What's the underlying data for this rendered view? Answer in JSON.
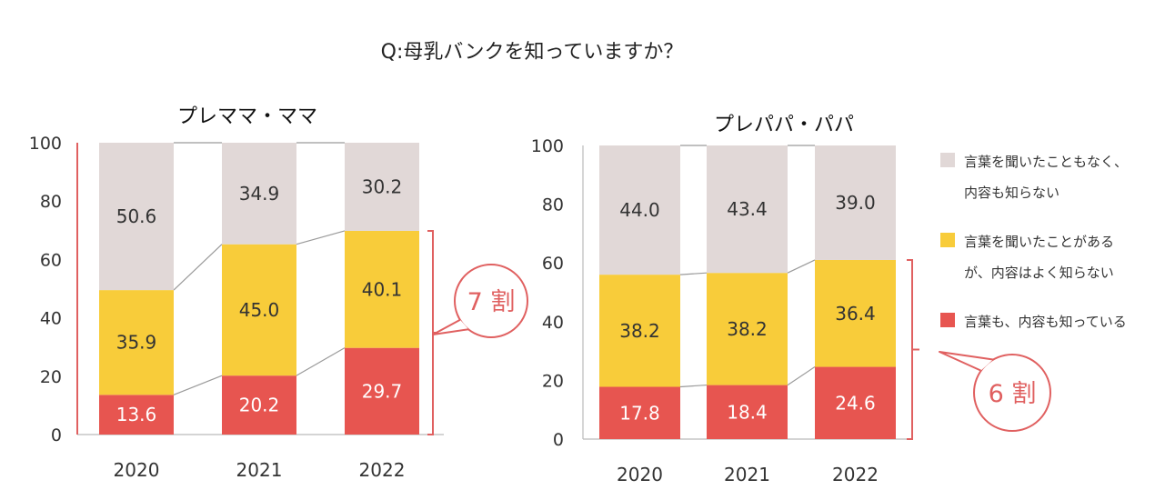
{
  "question": "Q:母乳バンクを知っていますか？",
  "colors": {
    "unaware": "#e1d8d7",
    "heard": "#f8cc3a",
    "know": "#e75550",
    "accent": "#e06060",
    "connector": "#9a9a9a",
    "axis": "#bbbbbb",
    "text": "#333333"
  },
  "legend": [
    {
      "key": "unaware",
      "lines": [
        "言葉を聞いたこともなく、",
        "内容も知らない"
      ]
    },
    {
      "key": "heard",
      "lines": [
        "言葉を聞いたことがある",
        "が、内容はよく知らない"
      ]
    },
    {
      "key": "know",
      "lines": [
        "言葉も、内容も知っている"
      ]
    }
  ],
  "chart_data": [
    {
      "type": "bar",
      "stacked": true,
      "title": "プレママ・ママ",
      "categories": [
        "2020",
        "2021",
        "2022"
      ],
      "ylim": [
        0,
        100
      ],
      "yticks": [
        "0",
        "20",
        "40",
        "60",
        "80",
        "100"
      ],
      "series": [
        {
          "key": "know",
          "name": "言葉も、内容も知っている",
          "values": [
            13.6,
            20.2,
            29.7
          ],
          "labels": [
            "13.6",
            "20.2",
            "29.7"
          ]
        },
        {
          "key": "heard",
          "name": "言葉を聞いたことがあるが、内容はよく知らない",
          "values": [
            35.9,
            45.0,
            40.1
          ],
          "labels": [
            "35.9",
            "45.0",
            "40.1"
          ]
        },
        {
          "key": "unaware",
          "name": "言葉を聞いたこともなく、内容も知らない",
          "values": [
            50.6,
            34.9,
            30.2
          ],
          "labels": [
            "50.6",
            "34.9",
            "30.2"
          ]
        }
      ],
      "callout": "7 割"
    },
    {
      "type": "bar",
      "stacked": true,
      "title": "プレパパ・パパ",
      "categories": [
        "2020",
        "2021",
        "2022"
      ],
      "ylim": [
        0,
        100
      ],
      "yticks": [
        "0",
        "20",
        "40",
        "60",
        "80",
        "100"
      ],
      "series": [
        {
          "key": "know",
          "name": "言葉も、内容も知っている",
          "values": [
            17.8,
            18.4,
            24.6
          ],
          "labels": [
            "17.8",
            "18.4",
            "24.6"
          ]
        },
        {
          "key": "heard",
          "name": "言葉を聞いたことがあるが、内容はよく知らない",
          "values": [
            38.2,
            38.2,
            36.4
          ],
          "labels": [
            "38.2",
            "38.2",
            "36.4"
          ]
        },
        {
          "key": "unaware",
          "name": "言葉を聞いたこともなく、内容も知らない",
          "values": [
            44.0,
            43.4,
            39.0
          ],
          "labels": [
            "44.0",
            "43.4",
            "39.0"
          ]
        }
      ],
      "callout": "6 割"
    }
  ]
}
